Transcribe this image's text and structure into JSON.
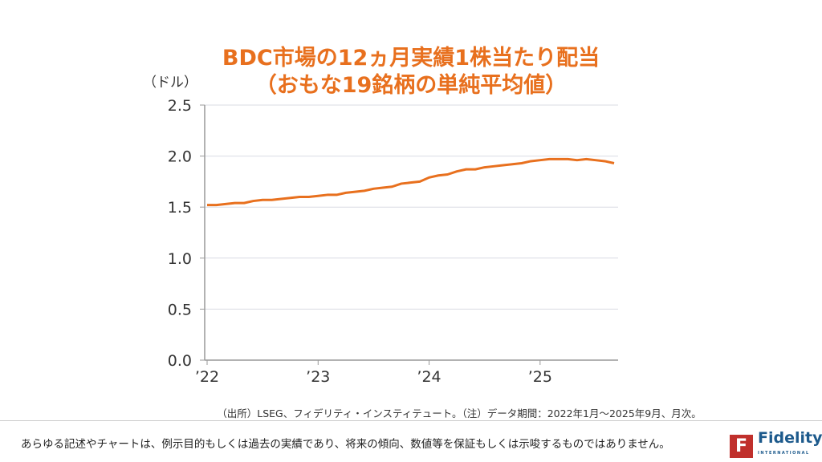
{
  "chart_data": {
    "type": "line",
    "title": "BDC市場の12ヵ月実績1株当たり配当",
    "subtitle": "（おもな19銘柄の単純平均値）",
    "ylabel": "（ドル）",
    "xlabel": "",
    "ylim": [
      0,
      2.5
    ],
    "yticks": [
      "0.0",
      "0.5",
      "1.0",
      "1.5",
      "2.0",
      "2.5"
    ],
    "xticks": [
      "’22",
      "’23",
      "’24",
      "’25"
    ],
    "grid": true,
    "color": "#e8701e",
    "x": [
      "2022-01",
      "2022-02",
      "2022-03",
      "2022-04",
      "2022-05",
      "2022-06",
      "2022-07",
      "2022-08",
      "2022-09",
      "2022-10",
      "2022-11",
      "2022-12",
      "2023-01",
      "2023-02",
      "2023-03",
      "2023-04",
      "2023-05",
      "2023-06",
      "2023-07",
      "2023-08",
      "2023-09",
      "2023-10",
      "2023-11",
      "2023-12",
      "2024-01",
      "2024-02",
      "2024-03",
      "2024-04",
      "2024-05",
      "2024-06",
      "2024-07",
      "2024-08",
      "2024-09",
      "2024-10",
      "2024-11",
      "2024-12",
      "2025-01",
      "2025-02",
      "2025-03",
      "2025-04",
      "2025-05",
      "2025-06",
      "2025-07",
      "2025-08",
      "2025-09"
    ],
    "values": [
      1.52,
      1.52,
      1.53,
      1.54,
      1.54,
      1.56,
      1.57,
      1.57,
      1.58,
      1.59,
      1.6,
      1.6,
      1.61,
      1.62,
      1.62,
      1.64,
      1.65,
      1.66,
      1.68,
      1.69,
      1.7,
      1.73,
      1.74,
      1.75,
      1.79,
      1.81,
      1.82,
      1.85,
      1.87,
      1.87,
      1.89,
      1.9,
      1.91,
      1.92,
      1.93,
      1.95,
      1.96,
      1.97,
      1.97,
      1.97,
      1.96,
      1.97,
      1.96,
      1.95,
      1.93
    ]
  },
  "source": "（出所）LSEG、フィデリティ・インスティテュート。（注）データ期間：2022年1月～2025年9月、月次。",
  "disclaimer": "あらゆる記述やチャートは、例示目的もしくは過去の実績であり、将来の傾向、数値等を保証もしくは示唆するものではありません。",
  "logo": {
    "name": "Fidelity",
    "sub": "INTERNATIONAL",
    "mark": "F"
  }
}
